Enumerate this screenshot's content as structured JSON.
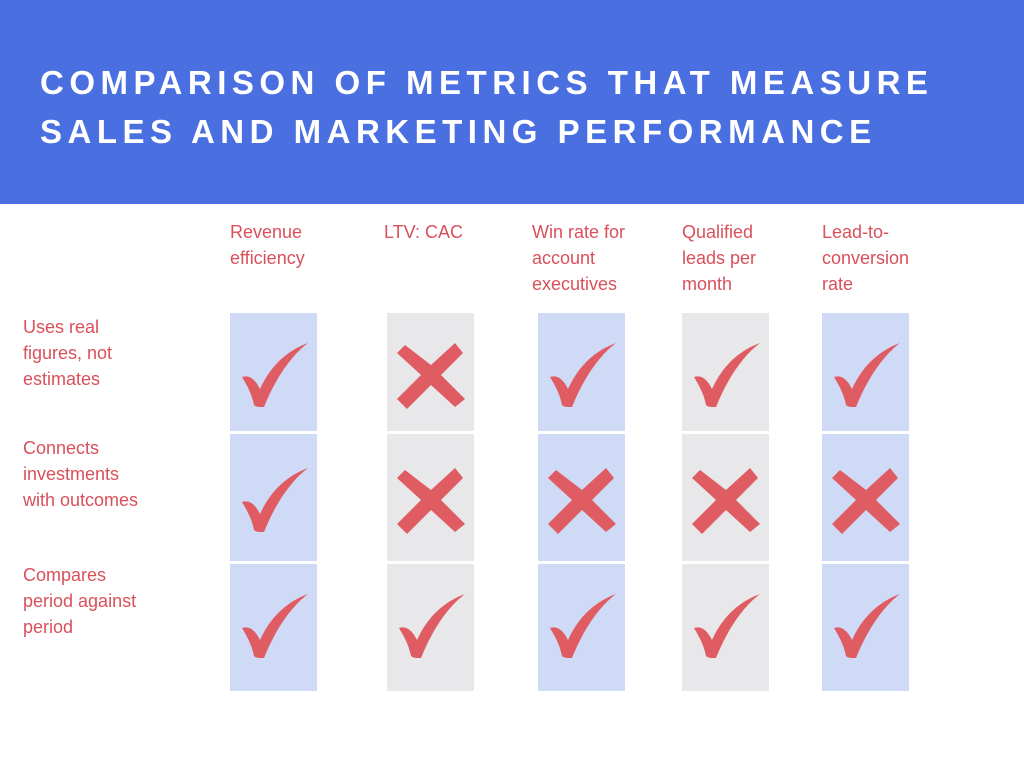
{
  "title_lines": [
    "COMPARISON OF METRICS THAT MEASURE",
    "SALES AND MARKETING PERFORMANCE"
  ],
  "colors": {
    "banner": "#4a6fe0",
    "text_accent": "#d9505a",
    "column_blue": "#cfdaf7",
    "column_gray": "#e8e8ea",
    "mark": "#e05c63"
  },
  "columns": [
    {
      "label": "Revenue\nefficiency",
      "shade": "blue"
    },
    {
      "label": "LTV: CAC",
      "shade": "gray"
    },
    {
      "label": "Win rate for\naccount\nexecutives",
      "shade": "blue"
    },
    {
      "label": "Qualified\nleads per\nmonth",
      "shade": "gray"
    },
    {
      "label": "Lead-to-\nconversion\nrate",
      "shade": "blue"
    }
  ],
  "rows": [
    {
      "label": "Uses real\nfigures, not\nestimates",
      "marks": [
        "check",
        "cross",
        "check",
        "check",
        "check"
      ]
    },
    {
      "label": "Connects\ninvestments\nwith outcomes",
      "marks": [
        "check",
        "cross",
        "cross",
        "cross",
        "cross"
      ]
    },
    {
      "label": "Compares\nperiod against\nperiod",
      "marks": [
        "check",
        "check",
        "check",
        "check",
        "check"
      ]
    }
  ]
}
